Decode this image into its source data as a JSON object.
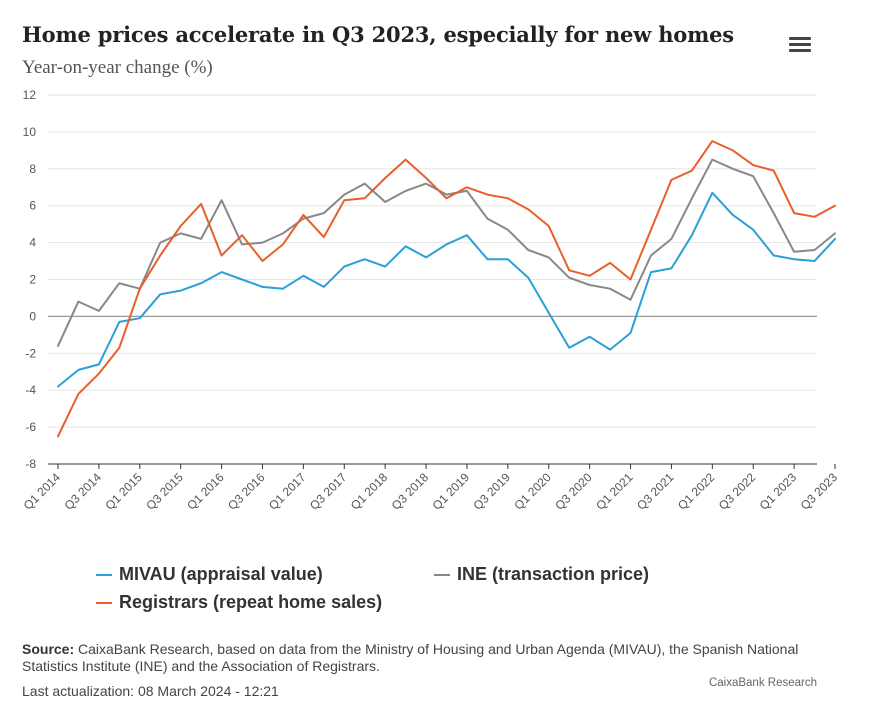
{
  "header": {
    "title": "Home prices accelerate in Q3 2023, especially for new homes",
    "subtitle": "Year-on-year change (%)"
  },
  "colors": {
    "mivau": "#2b9fd8",
    "ine": "#888888",
    "registrars": "#e85f2a",
    "grid": "#e6e6e6",
    "zero": "#999999"
  },
  "chart_data": {
    "type": "line",
    "title": "Home prices accelerate in Q3 2023, especially for new homes",
    "ylabel": "Year-on-year change (%)",
    "xlabel": "",
    "ylim": [
      -8,
      12
    ],
    "yticks": [
      -8,
      -6,
      -4,
      -2,
      0,
      2,
      4,
      6,
      8,
      10,
      12
    ],
    "categories": [
      "Q1 2014",
      "Q2 2014",
      "Q3 2014",
      "Q4 2014",
      "Q1 2015",
      "Q2 2015",
      "Q3 2015",
      "Q4 2015",
      "Q1 2016",
      "Q2 2016",
      "Q3 2016",
      "Q4 2016",
      "Q1 2017",
      "Q2 2017",
      "Q3 2017",
      "Q4 2017",
      "Q1 2018",
      "Q2 2018",
      "Q3 2018",
      "Q4 2018",
      "Q1 2019",
      "Q2 2019",
      "Q3 2019",
      "Q4 2019",
      "Q1 2020",
      "Q2 2020",
      "Q3 2020",
      "Q4 2020",
      "Q1 2021",
      "Q2 2021",
      "Q3 2021",
      "Q4 2021",
      "Q1 2022",
      "Q2 2022",
      "Q3 2022",
      "Q4 2022",
      "Q1 2023",
      "Q2 2023",
      "Q3 2023"
    ],
    "xtick_labels": [
      "Q1 2014",
      "Q3 2014",
      "Q1 2015",
      "Q3 2015",
      "Q1 2016",
      "Q3 2016",
      "Q1 2017",
      "Q3 2017",
      "Q1 2018",
      "Q3 2018",
      "Q1 2019",
      "Q3 2019",
      "Q1 2020",
      "Q3 2020",
      "Q1 2021",
      "Q3 2021",
      "Q1 2022",
      "Q3 2022",
      "Q1 2023",
      "Q3 2023"
    ],
    "series": [
      {
        "key": "mivau",
        "name": "MIVAU (appraisal value)",
        "values": [
          -3.8,
          -2.9,
          -2.6,
          -0.3,
          -0.1,
          1.2,
          1.4,
          1.8,
          2.4,
          2.0,
          1.6,
          1.5,
          2.2,
          1.6,
          2.7,
          3.1,
          2.7,
          3.8,
          3.2,
          3.9,
          4.4,
          3.1,
          3.1,
          2.1,
          0.2,
          -1.7,
          -1.1,
          -1.8,
          -0.9,
          2.4,
          2.6,
          4.4,
          6.7,
          5.5,
          4.7,
          3.3,
          3.1,
          3.0,
          4.2
        ]
      },
      {
        "key": "ine",
        "name": "INE (transaction price)",
        "values": [
          -1.6,
          0.8,
          0.3,
          1.8,
          1.5,
          4.0,
          4.5,
          4.2,
          6.3,
          3.9,
          4.0,
          4.5,
          5.3,
          5.6,
          6.6,
          7.2,
          6.2,
          6.8,
          7.2,
          6.6,
          6.8,
          5.3,
          4.7,
          3.6,
          3.2,
          2.1,
          1.7,
          1.5,
          0.9,
          3.3,
          4.2,
          6.4,
          8.5,
          8.0,
          7.6,
          5.6,
          3.5,
          3.6,
          4.5
        ]
      },
      {
        "key": "registrars",
        "name": "Registrars (repeat home sales)",
        "values": [
          -6.5,
          -4.2,
          -3.1,
          -1.7,
          1.5,
          3.3,
          4.9,
          6.1,
          3.3,
          4.4,
          3.0,
          3.9,
          5.5,
          4.3,
          6.3,
          6.4,
          7.5,
          8.5,
          7.5,
          6.4,
          7.0,
          6.6,
          6.4,
          5.8,
          4.9,
          2.5,
          2.2,
          2.9,
          2.0,
          4.7,
          7.4,
          7.9,
          9.5,
          9.0,
          8.2,
          7.9,
          5.6,
          5.4,
          6.0
        ]
      }
    ],
    "legend_position": "bottom",
    "grid": true
  },
  "legend": {
    "mivau": "MIVAU (appraisal value)",
    "ine": "INE (transaction price)",
    "registrars": "Registrars (repeat home sales)"
  },
  "footer": {
    "source_label": "Source:",
    "source_text": " CaixaBank Research, based on data from the Ministry of Housing and Urban Agenda (MIVAU), the Spanish National Statistics Institute (INE) and the Association of Registrars.",
    "updated": "Last actualization: 08 March 2024 - 12:21",
    "credit": "CaixaBank Research"
  }
}
